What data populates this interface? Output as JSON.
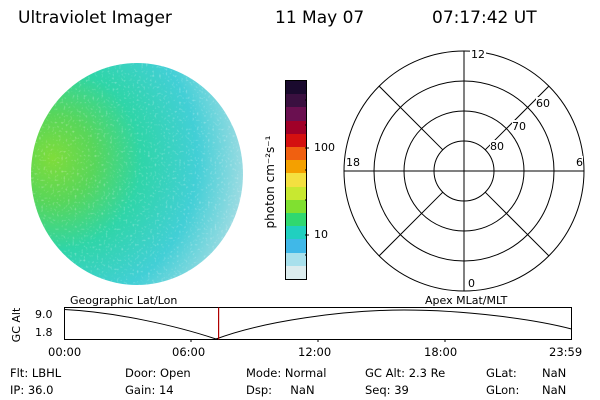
{
  "header": {
    "instrument": "Ultraviolet Imager",
    "date": "11 May 07",
    "time": "07:17:42 UT"
  },
  "colorbar": {
    "unit_label": "photon cm⁻²s⁻¹",
    "ticks": [
      "100",
      "10"
    ],
    "colors": [
      "#1a0a2e",
      "#3a1040",
      "#6a1050",
      "#a00028",
      "#d41010",
      "#f06010",
      "#f4a000",
      "#f4e040",
      "#c8e830",
      "#80e030",
      "#30d870",
      "#20d0c0",
      "#40b8e8",
      "#a8e0ec",
      "#dcecee"
    ]
  },
  "polar_plot": {
    "mlt_labels": {
      "top": "12",
      "left": "18",
      "right": "6",
      "bottom": "0"
    },
    "lat_labels": [
      "60",
      "70",
      "80"
    ]
  },
  "map_labels": {
    "left": "Geographic Lat/Lon",
    "right": "Apex MLat/MLT"
  },
  "orbit_plot": {
    "ylabel": "GC Alt",
    "yticks": [
      "9.0",
      "1.8"
    ],
    "xticks": [
      "00:00",
      "06:00",
      "12:00",
      "18:00",
      "23:59"
    ],
    "marker_time_hours": 7.295
  },
  "info": {
    "row1": {
      "flt": "Flt: LBHL",
      "door": "Door: Open",
      "mode": "Mode: Normal",
      "gcalt": "GC Alt: 2.3 Re",
      "glat_label": "GLat:",
      "glat_value": "NaN"
    },
    "row2": {
      "ip": "IP: 36.0",
      "gain": "Gain: 14",
      "dsp": "Dsp:     NaN",
      "seq": "Seq: 39",
      "glon_label": "GLon:",
      "glon_value": "NaN"
    }
  }
}
